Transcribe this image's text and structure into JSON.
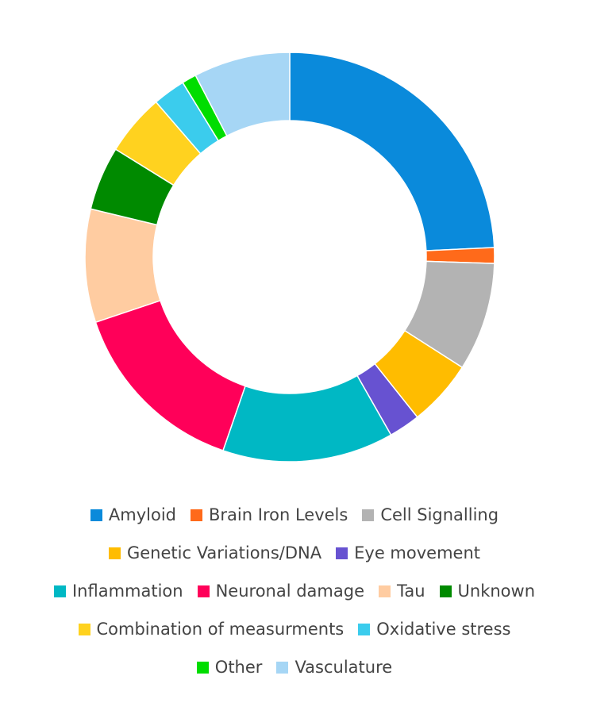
{
  "chart_data": {
    "type": "pie",
    "variant": "donut",
    "title": "",
    "legend_position": "bottom",
    "slices": [
      {
        "label": "Amyloid",
        "value": 25.5,
        "color": "#0A8ADB"
      },
      {
        "label": "Brain Iron Levels",
        "value": 1.3,
        "color": "#FF6A1A"
      },
      {
        "label": "Cell Signalling",
        "value": 9.0,
        "color": "#B3B3B3"
      },
      {
        "label": "Genetic Variations/DNA",
        "value": 5.5,
        "color": "#FFBC00"
      },
      {
        "label": "Eye movement",
        "value": 2.6,
        "color": "#6752D1"
      },
      {
        "label": "Inflammation",
        "value": 14.2,
        "color": "#00B8C4"
      },
      {
        "label": "Neuronal damage",
        "value": 15.3,
        "color": "#FF0059"
      },
      {
        "label": "Tau",
        "value": 9.4,
        "color": "#FFCCA1"
      },
      {
        "label": "Unknown",
        "value": 5.3,
        "color": "#008A00"
      },
      {
        "label": "Combination of measurments",
        "value": 5.1,
        "color": "#FFD21F"
      },
      {
        "label": "Oxidative stress",
        "value": 2.7,
        "color": "#3BCCED"
      },
      {
        "label": "Other",
        "value": 1.2,
        "color": "#00DD00"
      },
      {
        "label": "Vasculature",
        "value": 8.0,
        "color": "#A6D6F5"
      }
    ]
  }
}
